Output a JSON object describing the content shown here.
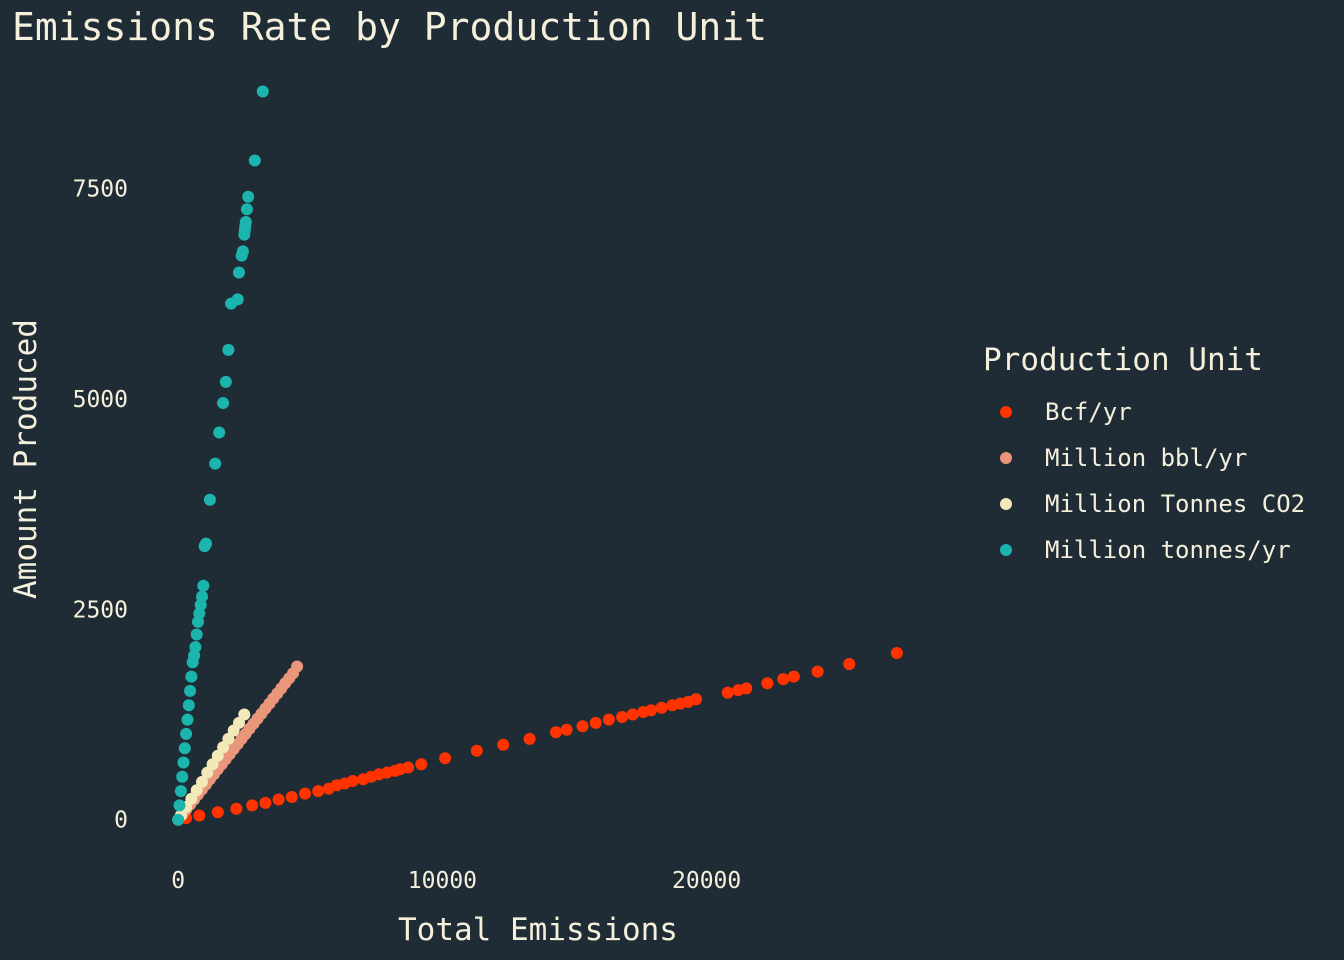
{
  "chart_data": {
    "type": "scatter",
    "title": "Emissions Rate by Production Unit",
    "xlabel": "Total Emissions",
    "ylabel": "Amount Produced",
    "xlim": [
      -500,
      28000
    ],
    "ylim": [
      -300,
      9000
    ],
    "x_ticks": [
      0,
      10000,
      20000
    ],
    "y_ticks": [
      0,
      2500,
      5000,
      7500
    ],
    "grid": false,
    "legend": {
      "title": "Production Unit",
      "placement": "right"
    },
    "background": "#1f2c36",
    "text_color": "#f5f0dc",
    "series": [
      {
        "name": "Bcf/yr",
        "color": "#ff3300",
        "x": [
          300,
          800,
          1500,
          2200,
          2800,
          3300,
          3800,
          4300,
          4800,
          5300,
          5700,
          6000,
          6300,
          6600,
          7000,
          7300,
          7600,
          7900,
          8200,
          8400,
          8700,
          9200,
          10100,
          11300,
          12300,
          13300,
          14300,
          14700,
          15300,
          15800,
          16300,
          16800,
          17200,
          17600,
          17900,
          18300,
          18700,
          19000,
          19300,
          19600,
          20800,
          21200,
          21500,
          22300,
          22900,
          23300,
          24200,
          25400,
          27200
        ],
        "y": [
          20,
          50,
          90,
          130,
          170,
          200,
          240,
          270,
          310,
          340,
          370,
          410,
          430,
          460,
          480,
          510,
          540,
          560,
          580,
          600,
          620,
          660,
          730,
          820,
          890,
          960,
          1040,
          1070,
          1110,
          1150,
          1190,
          1220,
          1250,
          1280,
          1300,
          1330,
          1360,
          1380,
          1400,
          1430,
          1510,
          1540,
          1560,
          1620,
          1670,
          1700,
          1760,
          1850,
          1980
        ]
      },
      {
        "name": "Million bbl/yr",
        "color": "#e9967a",
        "x": [
          0,
          150,
          300,
          450,
          600,
          750,
          900,
          1050,
          1200,
          1350,
          1500,
          1650,
          1800,
          1950,
          2100,
          2250,
          2400,
          2550,
          2700,
          2850,
          3000,
          3150,
          3300,
          3450,
          3600,
          3750,
          3900,
          4050,
          4200,
          4350,
          4500
        ],
        "y": [
          0,
          60,
          120,
          180,
          240,
          300,
          360,
          420,
          480,
          540,
          600,
          660,
          720,
          780,
          840,
          900,
          960,
          1020,
          1080,
          1140,
          1200,
          1260,
          1320,
          1380,
          1440,
          1500,
          1560,
          1620,
          1680,
          1740,
          1820
        ]
      },
      {
        "name": "Million Tonnes CO2",
        "color": "#f2e8b8",
        "x": [
          100,
          300,
          500,
          700,
          900,
          1100,
          1300,
          1500,
          1700,
          1900,
          2100,
          2300,
          2500
        ],
        "y": [
          50,
          150,
          250,
          350,
          450,
          560,
          660,
          760,
          860,
          960,
          1060,
          1150,
          1250
        ]
      },
      {
        "name": "Million tonnes/yr",
        "color": "#1bb5ad",
        "x": [
          0,
          50,
          100,
          150,
          200,
          250,
          300,
          350,
          400,
          450,
          500,
          550,
          600,
          650,
          700,
          750,
          800,
          850,
          900,
          950,
          1000,
          1050,
          1200,
          1400,
          1550,
          1700,
          1800,
          1900,
          2000,
          2250,
          2300,
          2400,
          2450,
          2500,
          2520,
          2540,
          2560,
          2600,
          2650,
          2900,
          3200
        ],
        "y": [
          0,
          170,
          340,
          510,
          680,
          850,
          1020,
          1190,
          1360,
          1530,
          1700,
          1870,
          1950,
          2050,
          2200,
          2350,
          2450,
          2550,
          2650,
          2780,
          3250,
          3280,
          3800,
          4230,
          4600,
          4950,
          5200,
          5580,
          6130,
          6180,
          6500,
          6700,
          6750,
          6950,
          7000,
          7050,
          7100,
          7250,
          7400,
          7830,
          8650
        ]
      }
    ]
  }
}
